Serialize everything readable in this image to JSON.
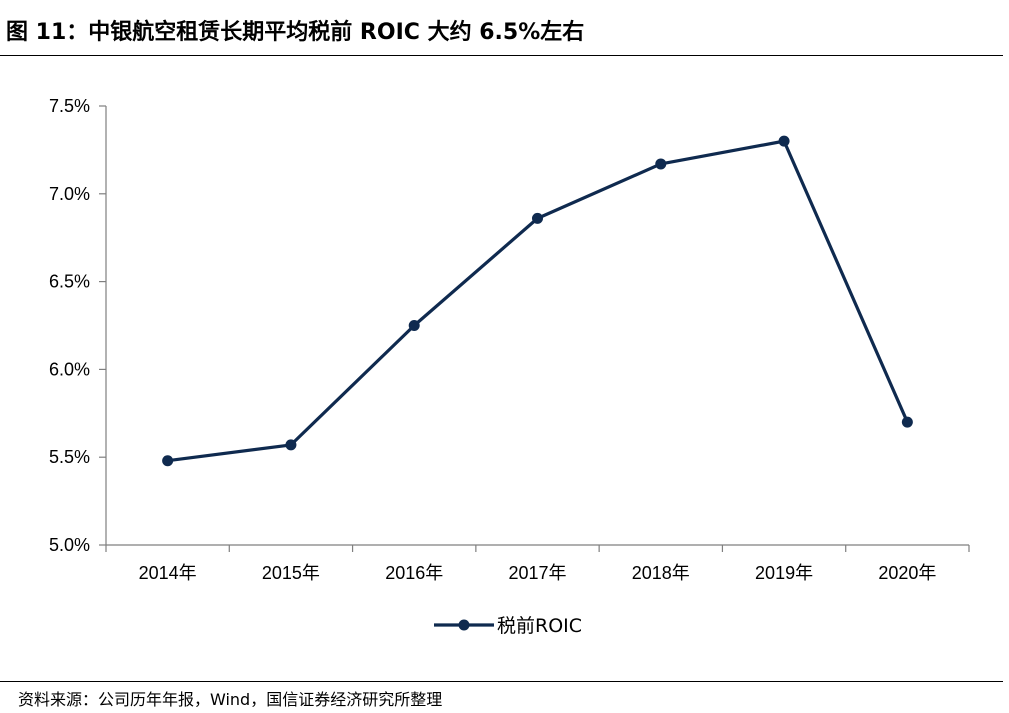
{
  "figure": {
    "title": "图 11：中银航空租赁长期平均税前 ROIC 大约 6.5%左右",
    "source": "资料来源：公司历年年报，Wind，国信证券经济研究所整理"
  },
  "chart_data": {
    "type": "line",
    "title": "",
    "xlabel": "",
    "ylabel": "",
    "categories": [
      "2014年",
      "2015年",
      "2016年",
      "2017年",
      "2018年",
      "2019年",
      "2020年"
    ],
    "series": [
      {
        "name": "税前ROIC",
        "values": [
          5.48,
          5.57,
          6.25,
          6.86,
          7.17,
          7.3,
          5.7
        ],
        "color": "#0f2a4f"
      }
    ],
    "ylim": [
      5.0,
      7.5
    ],
    "yticks": [
      5.0,
      5.5,
      6.0,
      6.5,
      7.0,
      7.5
    ],
    "ytick_labels": [
      "5.0%",
      "5.5%",
      "6.0%",
      "6.5%",
      "7.0%",
      "7.5%"
    ],
    "grid": false,
    "legend_position": "bottom-center",
    "marker": "circle"
  }
}
